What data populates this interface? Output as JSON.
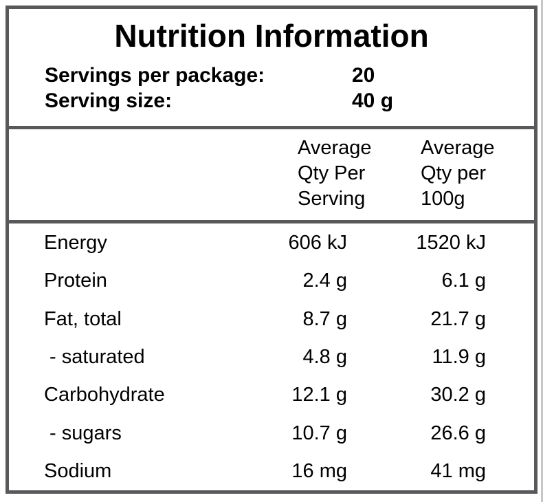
{
  "title": "Nutrition Information",
  "colors": {
    "border": "#59595b",
    "text": "#000000",
    "page_edge": "#c7c7c9"
  },
  "servings": {
    "rows": [
      {
        "label": "Servings per package:",
        "value": "20"
      },
      {
        "label": "Serving size:",
        "value": "40 g"
      }
    ]
  },
  "table": {
    "col_headers": {
      "per_serving": [
        "Average",
        "Qty Per",
        "Serving"
      ],
      "per_100g": [
        "Average",
        "Qty per",
        "100g"
      ]
    },
    "rows": [
      {
        "label": "Energy",
        "per_serving": "606 kJ",
        "per_100g": "1520 kJ"
      },
      {
        "label": "Protein",
        "per_serving": "2.4 g",
        "per_100g": "6.1 g"
      },
      {
        "label": "Fat, total",
        "per_serving": "8.7 g",
        "per_100g": "21.7 g"
      },
      {
        "label": " - saturated",
        "per_serving": "4.8 g",
        "per_100g": "11.9 g"
      },
      {
        "label": "Carbohydrate",
        "per_serving": "12.1 g",
        "per_100g": "30.2 g"
      },
      {
        "label": " - sugars",
        "per_serving": "10.7 g",
        "per_100g": "26.6 g"
      },
      {
        "label": "Sodium",
        "per_serving": "16 mg",
        "per_100g": "41 mg"
      }
    ]
  }
}
